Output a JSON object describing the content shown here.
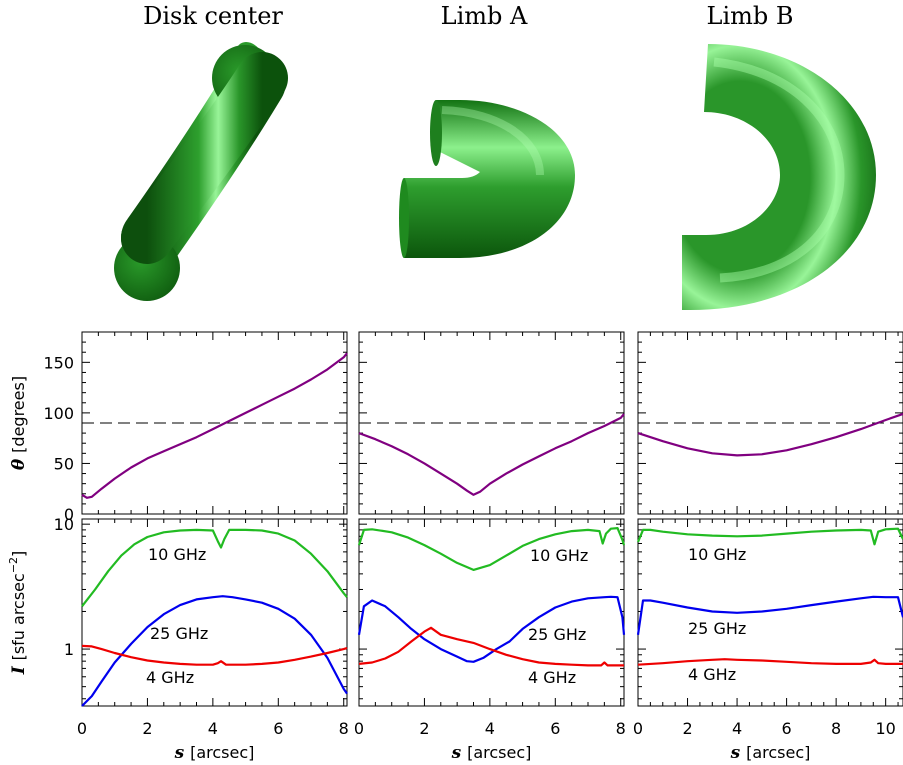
{
  "titles": {
    "panel1": "Disk center",
    "panel2": "Limb A",
    "panel3": "Limb B"
  },
  "colors": {
    "tube_dark": "#0f5f0f",
    "tube_mid": "#1f8f1f",
    "tube_light": "#8ff08f",
    "theta": "#800080",
    "f10": "#22bb22",
    "f25": "#0000ee",
    "f4": "#ee0000"
  },
  "axes": {
    "theta_ylabel_sym": "θ",
    "theta_ylabel_unit": "[degrees]",
    "theta_ticks": [
      "0",
      "50",
      "100",
      "150"
    ],
    "I_ylabel_sym": "I",
    "I_ylabel_unit": "[sfu arcsec",
    "I_ylabel_exp": "−2",
    "I_ylabel_close": "]",
    "I_ticks": [
      "1",
      "10"
    ],
    "x_label_sym": "s",
    "x_label_unit": "[arcsec]",
    "x_ticks_1": [
      "0",
      "2",
      "4",
      "6",
      "8"
    ],
    "x_ticks_2": [
      "0",
      "2",
      "4",
      "6",
      "8"
    ],
    "x_ticks_3": [
      "0",
      "2",
      "4",
      "6",
      "8",
      "10"
    ]
  },
  "freq_labels": {
    "f10": "10 GHz",
    "f25": "25 GHz",
    "f4": "4 GHz"
  },
  "chart_data": [
    {
      "type": "line",
      "panel": "Disk center",
      "quantity": "theta",
      "ylabel": "θ [degrees]",
      "xlim": [
        0,
        8.1
      ],
      "ylim": [
        0,
        180
      ],
      "reference_line_y": 90,
      "series": [
        {
          "x": [
            0,
            0.15,
            0.3,
            0.6,
            1,
            1.5,
            2,
            2.5,
            3,
            3.5,
            4,
            4.5,
            5,
            5.5,
            6,
            6.5,
            7,
            7.5,
            8,
            8.1
          ],
          "y": [
            19,
            16,
            17,
            25,
            35,
            46,
            55,
            62,
            69,
            76,
            84,
            92,
            100,
            108,
            116,
            124,
            133,
            143,
            155,
            159
          ]
        }
      ]
    },
    {
      "type": "line",
      "panel": "Limb A",
      "quantity": "theta",
      "xlim": [
        0,
        8.1
      ],
      "ylim": [
        0,
        180
      ],
      "reference_line_y": 90,
      "series": [
        {
          "x": [
            0,
            0.5,
            1,
            1.5,
            2,
            2.5,
            3,
            3.3,
            3.5,
            3.7,
            4,
            4.5,
            5,
            5.5,
            6,
            6.5,
            7,
            7.5,
            8,
            8.1
          ],
          "y": [
            80,
            74,
            67,
            59,
            50,
            40,
            30,
            23,
            19,
            22,
            30,
            40,
            49,
            57,
            65,
            72,
            80,
            87,
            95,
            99
          ]
        }
      ]
    },
    {
      "type": "line",
      "panel": "Limb B",
      "quantity": "theta",
      "xlim": [
        0,
        10.7
      ],
      "ylim": [
        0,
        180
      ],
      "reference_line_y": 90,
      "series": [
        {
          "x": [
            0,
            1,
            2,
            3,
            4,
            5,
            6,
            7,
            8,
            9,
            10,
            10.7
          ],
          "y": [
            80,
            72,
            65,
            60,
            58,
            59,
            63,
            69,
            76,
            84,
            93,
            99
          ]
        }
      ]
    },
    {
      "type": "line",
      "panel": "Disk center",
      "quantity": "I",
      "ylabel": "I [sfu arcsec−2]",
      "yscale": "log",
      "xlim": [
        0,
        8.1
      ],
      "ylim": [
        0.35,
        11
      ],
      "series": [
        {
          "name": "10 GHz",
          "x": [
            0,
            0.4,
            0.8,
            1.2,
            1.6,
            2,
            2.5,
            3,
            3.5,
            4,
            4.15,
            4.25,
            4.35,
            4.5,
            5,
            5.5,
            6,
            6.5,
            7,
            7.5,
            8,
            8.1
          ],
          "y": [
            2.2,
            3,
            4.2,
            5.6,
            6.9,
            7.9,
            8.6,
            8.9,
            9.0,
            8.9,
            7.3,
            6.5,
            7.6,
            9.0,
            9.0,
            8.9,
            8.4,
            7.4,
            5.8,
            4.2,
            2.8,
            2.6
          ]
        },
        {
          "name": "25 GHz",
          "x": [
            0,
            0.3,
            0.6,
            1,
            1.5,
            2,
            2.5,
            3,
            3.5,
            4,
            4.3,
            4.6,
            5,
            5.5,
            6,
            6.5,
            7,
            7.5,
            8,
            8.1
          ],
          "y": [
            0.35,
            0.42,
            0.55,
            0.78,
            1.1,
            1.5,
            1.9,
            2.25,
            2.5,
            2.6,
            2.65,
            2.6,
            2.5,
            2.35,
            2.1,
            1.75,
            1.3,
            0.85,
            0.48,
            0.44
          ]
        },
        {
          "name": "4 GHz",
          "x": [
            0,
            0.3,
            0.6,
            1,
            1.5,
            2,
            2.5,
            3,
            3.5,
            4,
            4.15,
            4.25,
            4.4,
            4.6,
            5,
            5.5,
            6,
            6.5,
            7,
            7.5,
            8,
            8.1
          ],
          "y": [
            1.06,
            1.05,
            1.0,
            0.93,
            0.86,
            0.81,
            0.78,
            0.76,
            0.75,
            0.75,
            0.77,
            0.8,
            0.75,
            0.75,
            0.75,
            0.76,
            0.78,
            0.82,
            0.87,
            0.93,
            1.0,
            1.02
          ]
        }
      ]
    },
    {
      "type": "line",
      "panel": "Limb A",
      "quantity": "I",
      "yscale": "log",
      "xlim": [
        0,
        8.1
      ],
      "ylim": [
        0.35,
        11
      ],
      "series": [
        {
          "name": "10 GHz",
          "x": [
            0,
            0.15,
            0.4,
            1,
            1.5,
            2,
            2.5,
            3,
            3.5,
            4,
            4.5,
            5,
            5.5,
            6,
            6.5,
            7,
            7.35,
            7.45,
            7.55,
            7.7,
            7.9,
            8.05,
            8.1
          ],
          "y": [
            6.8,
            9.0,
            9.1,
            8.6,
            7.8,
            6.8,
            5.8,
            4.9,
            4.3,
            4.7,
            5.6,
            6.7,
            7.6,
            8.3,
            8.8,
            9.0,
            8.8,
            7.0,
            8.4,
            9.2,
            9.3,
            7.5,
            6.8
          ]
        },
        {
          "name": "25 GHz",
          "x": [
            0,
            0.15,
            0.4,
            0.8,
            1.2,
            1.6,
            2,
            2.5,
            3,
            3.3,
            3.5,
            3.8,
            4.2,
            4.6,
            5,
            5.5,
            6,
            6.5,
            7,
            7.5,
            7.7,
            7.9,
            8.05,
            8.1
          ],
          "y": [
            1.3,
            2.2,
            2.45,
            2.2,
            1.8,
            1.45,
            1.2,
            1.0,
            0.87,
            0.8,
            0.79,
            0.85,
            1.0,
            1.15,
            1.45,
            1.8,
            2.15,
            2.4,
            2.55,
            2.6,
            2.62,
            2.6,
            1.8,
            1.3
          ]
        },
        {
          "name": "4 GHz",
          "x": [
            0,
            0.4,
            0.8,
            1.2,
            1.6,
            2,
            2.2,
            2.5,
            3,
            3.5,
            4,
            4.5,
            5,
            5.5,
            6,
            6.5,
            7,
            7.4,
            7.5,
            7.6,
            7.8,
            8.1
          ],
          "y": [
            0.76,
            0.78,
            0.84,
            0.95,
            1.15,
            1.38,
            1.48,
            1.3,
            1.2,
            1.12,
            1.0,
            0.9,
            0.83,
            0.78,
            0.76,
            0.75,
            0.74,
            0.74,
            0.78,
            0.74,
            0.74,
            0.74
          ]
        }
      ]
    },
    {
      "type": "line",
      "panel": "Limb B",
      "quantity": "I",
      "yscale": "log",
      "xlim": [
        0,
        10.7
      ],
      "ylim": [
        0.35,
        11
      ],
      "series": [
        {
          "name": "10 GHz",
          "x": [
            0,
            0.2,
            0.5,
            1,
            2,
            3,
            4,
            5,
            6,
            7,
            8,
            9,
            9.4,
            9.55,
            9.7,
            10,
            10.5,
            10.7
          ],
          "y": [
            7.2,
            9.0,
            9.0,
            8.7,
            8.3,
            8.1,
            8.0,
            8.1,
            8.4,
            8.7,
            8.9,
            9.0,
            8.9,
            6.9,
            8.7,
            9.1,
            9.2,
            7.6
          ]
        },
        {
          "name": "25 GHz",
          "x": [
            0,
            0.2,
            0.5,
            1,
            2,
            3,
            4,
            5,
            6,
            7,
            8,
            9,
            9.5,
            10,
            10.5,
            10.7
          ],
          "y": [
            1.3,
            2.45,
            2.45,
            2.35,
            2.15,
            2.0,
            1.95,
            2.0,
            2.1,
            2.25,
            2.4,
            2.55,
            2.62,
            2.6,
            2.6,
            1.8
          ]
        },
        {
          "name": "4 GHz",
          "x": [
            0,
            1,
            2,
            3,
            3.5,
            4,
            5,
            6,
            7,
            8,
            9,
            9.4,
            9.55,
            9.7,
            10,
            10.5,
            10.7
          ],
          "y": [
            0.75,
            0.77,
            0.8,
            0.82,
            0.83,
            0.82,
            0.81,
            0.79,
            0.77,
            0.76,
            0.76,
            0.78,
            0.82,
            0.77,
            0.76,
            0.76,
            0.76
          ]
        }
      ]
    }
  ]
}
